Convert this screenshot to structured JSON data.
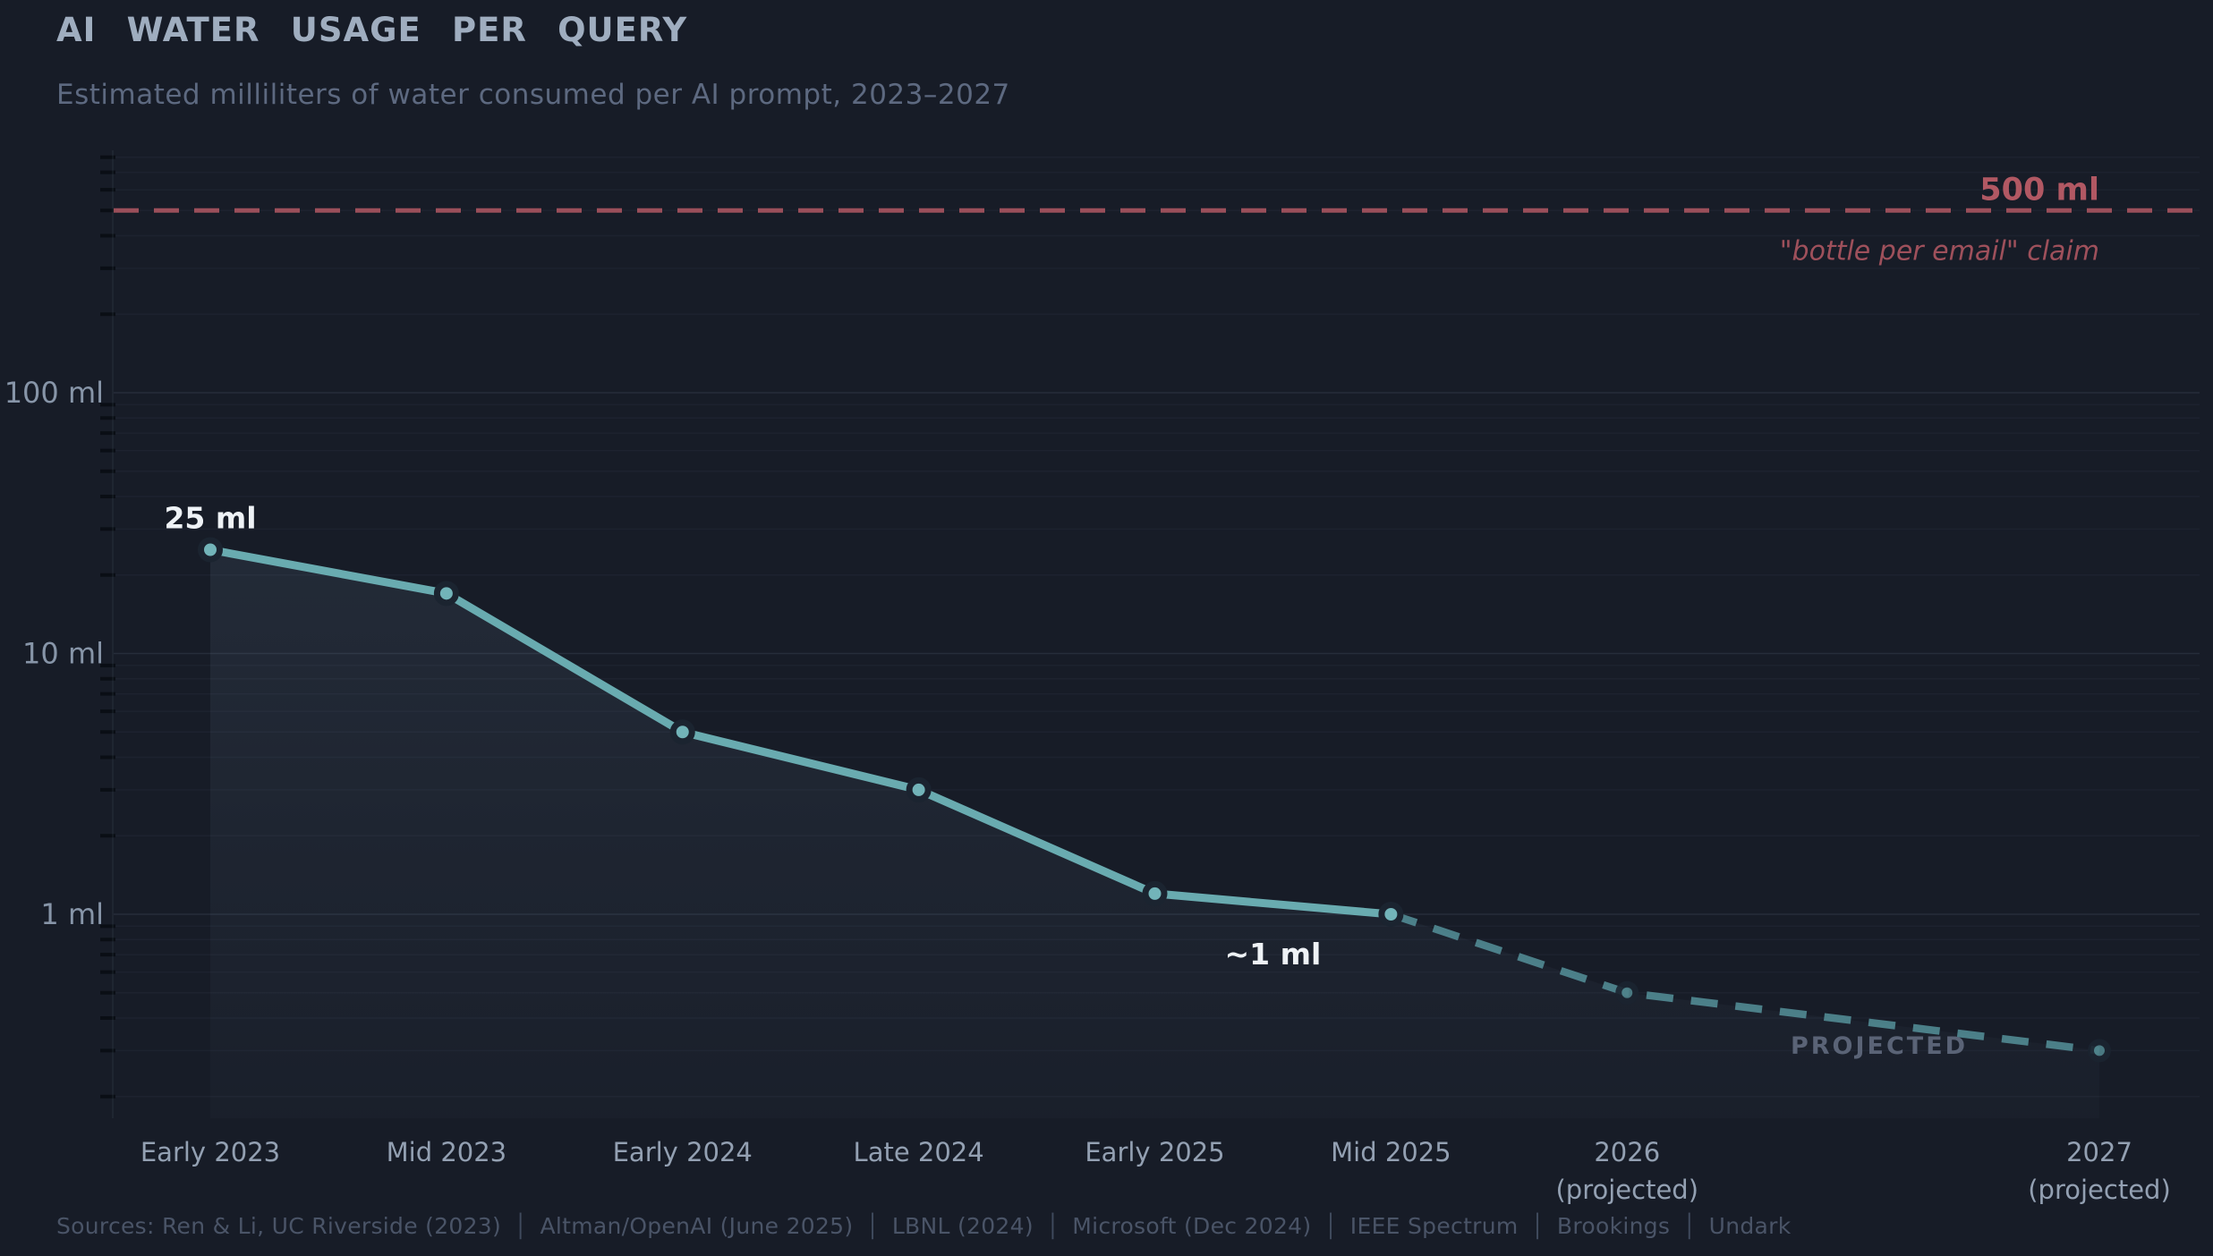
{
  "header": {
    "title": "AI WATER USAGE PER QUERY",
    "subtitle": "Estimated milliliters of water consumed per AI prompt, 2023–2027"
  },
  "chart_data": {
    "type": "line",
    "title": "AI WATER USAGE PER QUERY",
    "subtitle": "Estimated milliliters of water consumed per AI prompt, 2023–2027",
    "y_scale": "log",
    "ylim": [
      0.2,
      900
    ],
    "grid": true,
    "legend_position": "none",
    "categories": [
      "Early 2023",
      "Mid 2023",
      "Early 2024",
      "Late 2024",
      "Early 2025",
      "Mid 2025",
      "2026 (projected)",
      "2027 (projected)"
    ],
    "x_label_lines": [
      [
        "Early 2023"
      ],
      [
        "Mid 2023"
      ],
      [
        "Early 2024"
      ],
      [
        "Late 2024"
      ],
      [
        "Early 2025"
      ],
      [
        "Mid 2025"
      ],
      [
        "2026",
        "(projected)"
      ],
      [
        "2027",
        "(projected)"
      ]
    ],
    "x_slots": [
      0,
      1,
      2,
      3,
      4,
      5,
      6,
      8
    ],
    "values": [
      25,
      17,
      5,
      3,
      1.2,
      1,
      0.5,
      0.3
    ],
    "units": "ml",
    "projected_from_index": 5,
    "projected_label": "PROJECTED",
    "point_labels": [
      {
        "index": 0,
        "text": "25 ml",
        "position": "above"
      },
      {
        "index": 5,
        "text": "~1 ml",
        "position": "below-left"
      }
    ],
    "y_ticks_labeled": [
      {
        "value": 100,
        "label": "100 ml"
      },
      {
        "value": 10,
        "label": "10 ml"
      },
      {
        "value": 1,
        "label": "1 ml"
      }
    ],
    "reference_line": {
      "value": 500,
      "label": "500 ml",
      "sublabel": "\"bottle per email\" claim"
    }
  },
  "footer": {
    "prefix": "Sources:",
    "separator": "│",
    "items": [
      "Ren & Li, UC Riverside (2023)",
      "Altman/OpenAI (June 2025)",
      "LBNL (2024)",
      "Microsoft (Dec 2024)",
      "IEEE Spectrum",
      "Brookings",
      "Undark"
    ]
  },
  "colors": {
    "background": "#171c27",
    "title": "#9fadbf",
    "subtitle": "#5d6980",
    "line": "#69abb0",
    "point_fill": "#72b4b9",
    "point_ring": "#1b2430",
    "projected_line": "#55909a",
    "projected_point": "#4f838b",
    "projected_text": "#5a6376",
    "reference_red": "#b15863",
    "annotation_white": "#eef2f6",
    "axis_label": "#8795a8",
    "x_label": "#93a0b2",
    "footer_text": "#4a5467"
  }
}
